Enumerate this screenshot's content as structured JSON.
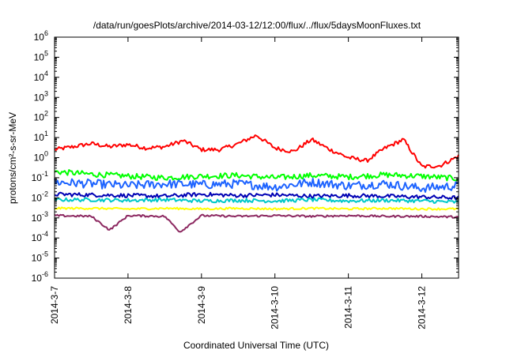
{
  "chart_data": {
    "type": "line",
    "title": "/data/run/goesPlots/archive/2014-03-12/12:00/flux/../flux/5daysMoonFluxes.txt",
    "xlabel": "Coordinated Universal Time (UTC)",
    "ylabel": "protons/cm²-s-sr-MeV",
    "yscale": "log",
    "ylim": [
      1e-06,
      1000000.0
    ],
    "y_ticks": [
      {
        "base": "10",
        "exp": "-6",
        "value": 1e-06
      },
      {
        "base": "10",
        "exp": "-5",
        "value": 1e-05
      },
      {
        "base": "10",
        "exp": "-4",
        "value": 0.0001
      },
      {
        "base": "10",
        "exp": "-3",
        "value": 0.001
      },
      {
        "base": "10",
        "exp": "-2",
        "value": 0.01
      },
      {
        "base": "10",
        "exp": "-1",
        "value": 0.1
      },
      {
        "base": "10",
        "exp": "0",
        "value": 1
      },
      {
        "base": "10",
        "exp": "1",
        "value": 10
      },
      {
        "base": "10",
        "exp": "2",
        "value": 100
      },
      {
        "base": "10",
        "exp": "3",
        "value": 1000
      },
      {
        "base": "10",
        "exp": "4",
        "value": 10000
      },
      {
        "base": "10",
        "exp": "5",
        "value": 100000
      },
      {
        "base": "10",
        "exp": "6",
        "value": 1000000
      }
    ],
    "xlim": [
      "2014-03-07 00:00",
      "2014-03-12 12:00"
    ],
    "x_ticks": [
      "2014-3-7",
      "2014-3-8",
      "2014-3-9",
      "2014-3-10",
      "2014-3-11",
      "2014-3-12"
    ],
    "x_tick_values": [
      "2014-03-07",
      "2014-03-08",
      "2014-03-09",
      "2014-03-10",
      "2014-03-11",
      "2014-03-12"
    ],
    "grid": false,
    "legend": "none",
    "series": [
      {
        "color": "#ff0000",
        "x": [
          "2014-03-07 00:00",
          "2014-03-07 06:00",
          "2014-03-07 12:00",
          "2014-03-07 18:00",
          "2014-03-08 00:00",
          "2014-03-08 06:00",
          "2014-03-08 12:00",
          "2014-03-08 18:00",
          "2014-03-09 00:00",
          "2014-03-09 06:00",
          "2014-03-09 12:00",
          "2014-03-09 18:00",
          "2014-03-10 00:00",
          "2014-03-10 06:00",
          "2014-03-10 12:00",
          "2014-03-10 18:00",
          "2014-03-11 00:00",
          "2014-03-11 06:00",
          "2014-03-11 12:00",
          "2014-03-11 18:00",
          "2014-03-12 00:00",
          "2014-03-12 06:00",
          "2014-03-12 12:00"
        ],
        "values": [
          2.5,
          3.5,
          5,
          3.5,
          4.5,
          3,
          3.5,
          7,
          2.5,
          2.5,
          5,
          13,
          3,
          2,
          8,
          2.5,
          1,
          0.7,
          3,
          8,
          0.35,
          0.4,
          1.2
        ]
      },
      {
        "color": "#00ff00",
        "x": [
          "2014-03-07 00:00",
          "2014-03-07 12:00",
          "2014-03-08 00:00",
          "2014-03-08 12:00",
          "2014-03-09 00:00",
          "2014-03-09 12:00",
          "2014-03-10 00:00",
          "2014-03-10 12:00",
          "2014-03-11 00:00",
          "2014-03-11 12:00",
          "2014-03-12 00:00",
          "2014-03-12 12:00"
        ],
        "values": [
          0.2,
          0.15,
          0.12,
          0.1,
          0.12,
          0.13,
          0.1,
          0.13,
          0.11,
          0.14,
          0.12,
          0.09
        ]
      },
      {
        "color": "#1e64ff",
        "x": [
          "2014-03-07 00:00",
          "2014-03-07 12:00",
          "2014-03-08 00:00",
          "2014-03-08 12:00",
          "2014-03-09 00:00",
          "2014-03-09 12:00",
          "2014-03-10 00:00",
          "2014-03-10 12:00",
          "2014-03-11 00:00",
          "2014-03-11 12:00",
          "2014-03-12 00:00",
          "2014-03-12 12:00"
        ],
        "values": [
          0.06,
          0.05,
          0.04,
          0.05,
          0.045,
          0.05,
          0.035,
          0.06,
          0.04,
          0.05,
          0.03,
          0.04
        ]
      },
      {
        "color": "#0000b4",
        "x": [
          "2014-03-07 00:00",
          "2014-03-07 12:00",
          "2014-03-08 00:00",
          "2014-03-08 12:00",
          "2014-03-09 00:00",
          "2014-03-09 12:00",
          "2014-03-10 00:00",
          "2014-03-10 12:00",
          "2014-03-11 00:00",
          "2014-03-11 12:00",
          "2014-03-12 00:00",
          "2014-03-12 12:00"
        ],
        "values": [
          0.015,
          0.014,
          0.013,
          0.012,
          0.015,
          0.013,
          0.014,
          0.012,
          0.013,
          0.012,
          0.011,
          0.01
        ]
      },
      {
        "color": "#00c8c8",
        "x": [
          "2014-03-07 00:00",
          "2014-03-07 12:00",
          "2014-03-08 00:00",
          "2014-03-08 12:00",
          "2014-03-09 00:00",
          "2014-03-09 12:00",
          "2014-03-10 00:00",
          "2014-03-10 12:00",
          "2014-03-11 00:00",
          "2014-03-11 12:00",
          "2014-03-12 00:00",
          "2014-03-12 12:00"
        ],
        "values": [
          0.008,
          0.008,
          0.0075,
          0.008,
          0.007,
          0.0075,
          0.007,
          0.008,
          0.007,
          0.0075,
          0.007,
          0.006
        ]
      },
      {
        "color": "#ffff00",
        "x": [
          "2014-03-07 00:00",
          "2014-03-07 12:00",
          "2014-03-08 00:00",
          "2014-03-08 12:00",
          "2014-03-09 00:00",
          "2014-03-09 12:00",
          "2014-03-10 00:00",
          "2014-03-10 12:00",
          "2014-03-11 00:00",
          "2014-03-11 12:00",
          "2014-03-12 00:00",
          "2014-03-12 12:00"
        ],
        "values": [
          0.003,
          0.003,
          0.0028,
          0.003,
          0.0028,
          0.003,
          0.0028,
          0.003,
          0.0028,
          0.003,
          0.0028,
          0.0028
        ]
      },
      {
        "color": "#8c2860",
        "x": [
          "2014-03-07 00:00",
          "2014-03-07 12:00",
          "2014-03-07 18:00",
          "2014-03-08 00:00",
          "2014-03-08 12:00",
          "2014-03-08 17:00",
          "2014-03-09 00:00",
          "2014-03-09 12:00",
          "2014-03-10 00:00",
          "2014-03-10 12:00",
          "2014-03-11 00:00",
          "2014-03-11 12:00",
          "2014-03-12 00:00",
          "2014-03-12 12:00"
        ],
        "values": [
          0.0013,
          0.0012,
          0.00025,
          0.0013,
          0.0012,
          0.0002,
          0.0013,
          0.0012,
          0.0013,
          0.0012,
          0.0013,
          0.0012,
          0.0012,
          0.0011
        ]
      }
    ]
  }
}
